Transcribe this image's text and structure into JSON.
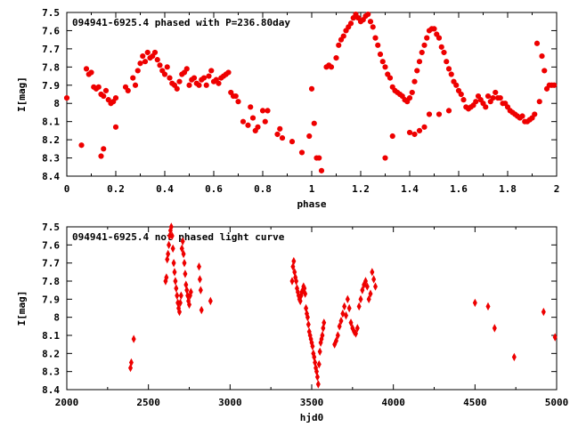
{
  "chart_data": [
    {
      "type": "scatter",
      "title": "094941-6925.4 phased with P=236.80day",
      "xlabel": "phase",
      "ylabel": "I[mag]",
      "xlim": [
        0,
        2
      ],
      "ylim": [
        8.4,
        7.5
      ],
      "x_reversed": false,
      "y_inverted": true,
      "grid": false,
      "x_ticks": [
        "0",
        "0.2",
        "0.4",
        "0.6",
        "0.8",
        "1",
        "1.2",
        "1.4",
        "1.6",
        "1.8",
        "2"
      ],
      "y_ticks": [
        "7.5",
        "7.6",
        "7.7",
        "7.8",
        "7.9",
        "8",
        "8.1",
        "8.2",
        "8.3",
        "8.4"
      ],
      "marker": "filled-circle",
      "color": "#ee0000",
      "series": [
        {
          "x": [
            0.0,
            0.06,
            0.08,
            0.09,
            0.1,
            0.11,
            0.12,
            0.13,
            0.14,
            0.15,
            0.16,
            0.17,
            0.18,
            0.19,
            0.2,
            0.2,
            0.14,
            0.15,
            0.24,
            0.25,
            0.27,
            0.28,
            0.29,
            0.3,
            0.31,
            0.32,
            0.33,
            0.34,
            0.35,
            0.36,
            0.37,
            0.38,
            0.39,
            0.4,
            0.41,
            0.42,
            0.43,
            0.44,
            0.45,
            0.46,
            0.47,
            0.48,
            0.49,
            0.5,
            0.51,
            0.52,
            0.53,
            0.54,
            0.55,
            0.56,
            0.57,
            0.58,
            0.59,
            0.6,
            0.61,
            0.62,
            0.63,
            0.64,
            0.65,
            0.66,
            0.67,
            0.68,
            0.69,
            0.7,
            0.72,
            0.74,
            0.75,
            0.76,
            0.77,
            0.78,
            0.8,
            0.81,
            0.82,
            0.86,
            0.87,
            0.88,
            0.92,
            0.96,
            0.99,
            1.0,
            1.01,
            1.02,
            1.03,
            1.04,
            1.06,
            1.07,
            1.08,
            1.1,
            1.11,
            1.12,
            1.13,
            1.14,
            1.15,
            1.16,
            1.17,
            1.18,
            1.19,
            1.2,
            1.21,
            1.22,
            1.23,
            1.24,
            1.25,
            1.26,
            1.27,
            1.28,
            1.29,
            1.3,
            1.31,
            1.32,
            1.33,
            1.34,
            1.35,
            1.36,
            1.37,
            1.38,
            1.39,
            1.4,
            1.41,
            1.42,
            1.43,
            1.44,
            1.45,
            1.46,
            1.47,
            1.48,
            1.49,
            1.5,
            1.51,
            1.52,
            1.53,
            1.54,
            1.55,
            1.56,
            1.57,
            1.58,
            1.59,
            1.6,
            1.61,
            1.62,
            1.63,
            1.64,
            1.65,
            1.66,
            1.67,
            1.68,
            1.69,
            1.7,
            1.71,
            1.72,
            1.73,
            1.74,
            1.75,
            1.76,
            1.77,
            1.78,
            1.79,
            1.8,
            1.81,
            1.82,
            1.83,
            1.84,
            1.85,
            1.86,
            1.87,
            1.88,
            1.89,
            1.9,
            1.91,
            1.92,
            1.93,
            1.94,
            1.95,
            1.96,
            1.97,
            1.98,
            1.99,
            1.4,
            1.42,
            1.44,
            1.46,
            1.48,
            1.52,
            1.56,
            1.3,
            1.33
          ],
          "y": [
            7.97,
            8.23,
            7.81,
            7.84,
            7.83,
            7.91,
            7.92,
            7.91,
            7.95,
            7.96,
            7.93,
            7.98,
            8.0,
            7.99,
            7.97,
            8.13,
            8.29,
            8.25,
            7.91,
            7.93,
            7.86,
            7.9,
            7.82,
            7.78,
            7.74,
            7.77,
            7.72,
            7.75,
            7.74,
            7.72,
            7.76,
            7.79,
            7.82,
            7.84,
            7.8,
            7.86,
            7.89,
            7.9,
            7.92,
            7.88,
            7.84,
            7.83,
            7.81,
            7.9,
            7.87,
            7.86,
            7.89,
            7.9,
            7.87,
            7.86,
            7.9,
            7.85,
            7.82,
            7.88,
            7.87,
            7.89,
            7.86,
            7.85,
            7.84,
            7.83,
            7.94,
            7.96,
            7.96,
            7.99,
            8.1,
            8.12,
            8.02,
            8.08,
            8.15,
            8.13,
            8.04,
            8.1,
            8.04,
            8.17,
            8.14,
            8.19,
            8.21,
            8.27,
            8.18,
            7.92,
            8.11,
            8.3,
            8.3,
            8.37,
            7.8,
            7.79,
            7.8,
            7.75,
            7.68,
            7.65,
            7.63,
            7.6,
            7.58,
            7.56,
            7.53,
            7.51,
            7.53,
            7.55,
            7.54,
            7.52,
            7.51,
            7.55,
            7.58,
            7.64,
            7.68,
            7.73,
            7.77,
            7.8,
            7.84,
            7.86,
            7.91,
            7.93,
            7.94,
            7.95,
            7.96,
            7.98,
            7.99,
            7.97,
            7.94,
            7.88,
            7.82,
            7.77,
            7.72,
            7.68,
            7.64,
            7.6,
            7.59,
            7.59,
            7.62,
            7.64,
            7.69,
            7.72,
            7.77,
            7.81,
            7.84,
            7.88,
            7.9,
            7.93,
            7.95,
            7.98,
            8.02,
            8.03,
            8.02,
            8.01,
            7.99,
            7.96,
            7.98,
            8.0,
            8.02,
            7.96,
            7.99,
            7.97,
            7.94,
            7.97,
            7.97,
            8.0,
            8.0,
            8.02,
            8.04,
            8.05,
            8.06,
            8.07,
            8.08,
            8.07,
            8.1,
            8.1,
            8.09,
            8.08,
            8.06,
            7.67,
            7.99,
            7.74,
            7.82,
            7.92,
            7.9,
            7.9,
            7.9,
            8.16,
            8.17,
            8.15,
            8.13,
            8.06,
            8.06,
            8.04,
            8.3,
            8.18
          ]
        }
      ]
    },
    {
      "type": "scatter",
      "title": "094941-6925.4 not phased light curve",
      "xlabel": "hjd0",
      "ylabel": "I[mag]",
      "xlim": [
        2000,
        5000
      ],
      "ylim": [
        8.4,
        7.5
      ],
      "y_inverted": true,
      "grid": false,
      "x_ticks": [
        "2000",
        "2500",
        "3000",
        "3500",
        "4000",
        "4500",
        "5000"
      ],
      "y_ticks": [
        "7.5",
        "7.6",
        "7.7",
        "7.8",
        "7.9",
        "8",
        "8.1",
        "8.2",
        "8.3",
        "8.4"
      ],
      "marker": "filled-diamond",
      "color": "#ee0000",
      "series": [
        {
          "x": [
            2390,
            2395,
            2410,
            2605,
            2610,
            2615,
            2620,
            2625,
            2630,
            2635,
            2640,
            2645,
            2650,
            2655,
            2660,
            2665,
            2670,
            2675,
            2680,
            2685,
            2690,
            2695,
            2700,
            2705,
            2710,
            2715,
            2720,
            2725,
            2730,
            2735,
            2740,
            2745,
            2750,
            2755,
            2760,
            2810,
            2815,
            2820,
            2825,
            2880,
            3380,
            3385,
            3390,
            3395,
            3400,
            3405,
            3410,
            3415,
            3420,
            3425,
            3430,
            3435,
            3440,
            3445,
            3450,
            3455,
            3460,
            3465,
            3470,
            3475,
            3480,
            3485,
            3490,
            3495,
            3500,
            3505,
            3510,
            3515,
            3520,
            3525,
            3530,
            3535,
            3540,
            3545,
            3550,
            3555,
            3560,
            3565,
            3570,
            3575,
            3640,
            3650,
            3660,
            3670,
            3680,
            3690,
            3700,
            3710,
            3720,
            3730,
            3740,
            3750,
            3760,
            3770,
            3780,
            3790,
            3800,
            3810,
            3820,
            3830,
            3840,
            3850,
            3860,
            3870,
            3880,
            3890,
            4500,
            4580,
            4620,
            4740,
            4920,
            4990
          ],
          "y": [
            8.28,
            8.25,
            8.12,
            7.8,
            7.78,
            7.68,
            7.65,
            7.6,
            7.55,
            7.52,
            7.5,
            7.55,
            7.62,
            7.7,
            7.75,
            7.8,
            7.84,
            7.88,
            7.92,
            7.95,
            7.97,
            7.92,
            7.88,
            7.62,
            7.58,
            7.65,
            7.7,
            7.76,
            7.82,
            7.85,
            7.88,
            7.91,
            7.93,
            7.88,
            7.86,
            7.72,
            7.79,
            7.85,
            7.96,
            7.91,
            7.8,
            7.72,
            7.69,
            7.75,
            7.78,
            7.8,
            7.84,
            7.86,
            7.88,
            7.9,
            7.91,
            7.88,
            7.86,
            7.85,
            7.83,
            7.84,
            7.87,
            7.95,
            7.98,
            8.0,
            8.04,
            8.08,
            8.1,
            8.12,
            8.14,
            8.16,
            8.2,
            8.22,
            8.25,
            8.28,
            8.3,
            8.33,
            8.37,
            8.26,
            8.19,
            8.14,
            8.12,
            8.1,
            8.06,
            8.03,
            8.15,
            8.13,
            8.1,
            8.05,
            8.02,
            7.98,
            7.94,
            7.99,
            7.9,
            7.95,
            8.03,
            8.06,
            8.08,
            8.09,
            8.06,
            7.94,
            7.9,
            7.85,
            7.82,
            7.8,
            7.83,
            7.9,
            7.87,
            7.75,
            7.79,
            7.83,
            7.92,
            7.94,
            8.06,
            8.22,
            7.97,
            8.11
          ]
        }
      ]
    }
  ]
}
